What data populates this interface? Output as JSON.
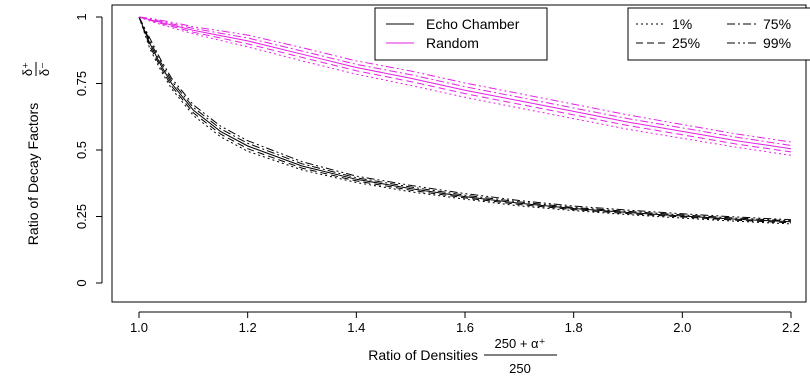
{
  "chart_data": {
    "type": "line",
    "xlabel": "Ratio of Densities",
    "xlabel_fraction": {
      "numerator": "250 + α⁺",
      "denominator": "250"
    },
    "ylabel": "Ratio of Decay Factors",
    "ylabel_fraction": {
      "numerator": "δ⁺",
      "denominator": "δ⁻"
    },
    "xlim": [
      1.0,
      2.2
    ],
    "ylim": [
      0,
      1
    ],
    "xticks": [
      1.0,
      1.2,
      1.4,
      1.6,
      1.8,
      2.0,
      2.2
    ],
    "xtick_labels": [
      "1.0",
      "1.2",
      "1.4",
      "1.6",
      "1.8",
      "2.0",
      "2.2"
    ],
    "yticks": [
      0,
      0.25,
      0.5,
      0.75,
      1
    ],
    "ytick_labels": [
      "0",
      "0.25",
      "0.5",
      "0.75",
      "1"
    ],
    "grid": false,
    "x": [
      1.0,
      1.02,
      1.04,
      1.06,
      1.08,
      1.1,
      1.15,
      1.2,
      1.3,
      1.4,
      1.5,
      1.6,
      1.7,
      1.8,
      1.9,
      2.0,
      2.1,
      2.2
    ],
    "series": [
      {
        "name": "Echo Chamber",
        "color": "#000000",
        "group": "echo",
        "style": "solid",
        "values": [
          1.0,
          0.9,
          0.82,
          0.75,
          0.7,
          0.65,
          0.57,
          0.515,
          0.44,
          0.39,
          0.355,
          0.325,
          0.3,
          0.28,
          0.265,
          0.252,
          0.24,
          0.23
        ]
      },
      {
        "name": "1%",
        "color": "#000000",
        "group": "echo",
        "style": "dotted",
        "values": [
          1.0,
          0.88,
          0.8,
          0.73,
          0.68,
          0.63,
          0.55,
          0.495,
          0.425,
          0.378,
          0.343,
          0.315,
          0.29,
          0.272,
          0.257,
          0.244,
          0.232,
          0.222
        ]
      },
      {
        "name": "25%",
        "color": "#000000",
        "group": "echo",
        "style": "dashed",
        "values": [
          1.0,
          0.89,
          0.81,
          0.74,
          0.69,
          0.64,
          0.56,
          0.505,
          0.432,
          0.384,
          0.349,
          0.32,
          0.295,
          0.276,
          0.261,
          0.248,
          0.236,
          0.226
        ]
      },
      {
        "name": "75%",
        "color": "#000000",
        "group": "echo",
        "style": "dashdot",
        "values": [
          1.0,
          0.91,
          0.83,
          0.76,
          0.71,
          0.66,
          0.58,
          0.525,
          0.448,
          0.396,
          0.361,
          0.33,
          0.305,
          0.284,
          0.269,
          0.256,
          0.244,
          0.234
        ]
      },
      {
        "name": "99%",
        "color": "#000000",
        "group": "echo",
        "style": "dashdotdot",
        "values": [
          1.0,
          0.92,
          0.84,
          0.77,
          0.72,
          0.67,
          0.59,
          0.535,
          0.456,
          0.402,
          0.367,
          0.336,
          0.31,
          0.289,
          0.274,
          0.26,
          0.248,
          0.238
        ]
      },
      {
        "name": "Random",
        "color": "#e620e6",
        "group": "random",
        "style": "solid",
        "values": [
          1.0,
          0.99,
          0.98,
          0.97,
          0.96,
          0.95,
          0.93,
          0.91,
          0.86,
          0.81,
          0.77,
          0.725,
          0.685,
          0.645,
          0.605,
          0.57,
          0.535,
          0.505
        ]
      },
      {
        "name": "1%",
        "color": "#e620e6",
        "group": "random",
        "style": "dotted",
        "values": [
          1.0,
          0.985,
          0.972,
          0.96,
          0.948,
          0.937,
          0.912,
          0.888,
          0.835,
          0.785,
          0.743,
          0.698,
          0.658,
          0.618,
          0.578,
          0.544,
          0.51,
          0.48
        ]
      },
      {
        "name": "25%",
        "color": "#e620e6",
        "group": "random",
        "style": "dashed",
        "values": [
          1.0,
          0.988,
          0.976,
          0.965,
          0.954,
          0.943,
          0.921,
          0.899,
          0.848,
          0.798,
          0.757,
          0.712,
          0.672,
          0.632,
          0.592,
          0.557,
          0.522,
          0.493
        ]
      },
      {
        "name": "75%",
        "color": "#e620e6",
        "group": "random",
        "style": "dashdot",
        "values": [
          1.0,
          0.992,
          0.984,
          0.975,
          0.966,
          0.957,
          0.939,
          0.921,
          0.872,
          0.822,
          0.783,
          0.738,
          0.698,
          0.658,
          0.618,
          0.583,
          0.548,
          0.517
        ]
      },
      {
        "name": "99%",
        "color": "#e620e6",
        "group": "random",
        "style": "dashdotdot",
        "values": [
          1.0,
          0.995,
          0.988,
          0.98,
          0.972,
          0.963,
          0.948,
          0.932,
          0.885,
          0.835,
          0.797,
          0.752,
          0.712,
          0.672,
          0.632,
          0.596,
          0.56,
          0.53
        ]
      }
    ],
    "legends": [
      {
        "placement": "top-center",
        "entries": [
          {
            "label": "Echo Chamber",
            "color": "#000000",
            "style": "solid"
          },
          {
            "label": "Random",
            "color": "#e620e6",
            "style": "solid"
          }
        ]
      },
      {
        "placement": "top-right",
        "entries": [
          {
            "label": "1%",
            "color": "#000000",
            "style": "dotted"
          },
          {
            "label": "75%",
            "color": "#000000",
            "style": "dashdot"
          },
          {
            "label": "25%",
            "color": "#000000",
            "style": "dashed"
          },
          {
            "label": "99%",
            "color": "#000000",
            "style": "dashdotdot"
          }
        ]
      }
    ]
  }
}
